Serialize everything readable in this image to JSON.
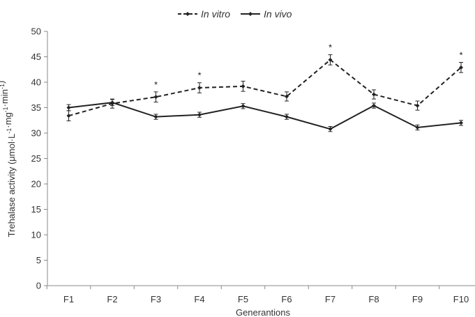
{
  "chart_data": {
    "type": "line",
    "title": "",
    "xlabel": "Generantions",
    "ylabel_main": "Trehalase activity (μmol·L",
    "ylabel_units": [
      {
        "base": "",
        "sup": "-1"
      },
      {
        "base": "·mg",
        "sup": "-1"
      },
      {
        "base": "·min",
        "sup": "-1"
      },
      {
        "base": ")",
        "sup": ""
      }
    ],
    "ylim": [
      0,
      50
    ],
    "yticks": [
      "0",
      "5",
      "10",
      "15",
      "20",
      "25",
      "30",
      "35",
      "40",
      "45",
      "50"
    ],
    "categories": [
      "F1",
      "F2",
      "F3",
      "F4",
      "F5",
      "F6",
      "F7",
      "F8",
      "F9",
      "F10"
    ],
    "legend_position": "top-center",
    "series": [
      {
        "name": "In vitro",
        "style": "dashed",
        "color": "#222222",
        "values": [
          33.4,
          35.8,
          37.1,
          38.9,
          39.2,
          37.2,
          44.4,
          37.6,
          35.4,
          42.9
        ],
        "errors": [
          1.0,
          0.9,
          1.0,
          1.0,
          1.0,
          0.9,
          1.0,
          0.9,
          0.9,
          1.0
        ]
      },
      {
        "name": "In vivo",
        "style": "solid",
        "color": "#222222",
        "values": [
          35.0,
          36.0,
          33.2,
          33.6,
          35.3,
          33.2,
          30.8,
          35.4,
          31.1,
          32.0
        ],
        "errors": [
          0.6,
          0.6,
          0.5,
          0.5,
          0.5,
          0.5,
          0.5,
          0.5,
          0.5,
          0.5
        ]
      }
    ],
    "annotations": [
      {
        "category": "F3",
        "text": "*"
      },
      {
        "category": "F4",
        "text": "*"
      },
      {
        "category": "F7",
        "text": "*"
      },
      {
        "category": "F10",
        "text": "*"
      }
    ]
  }
}
